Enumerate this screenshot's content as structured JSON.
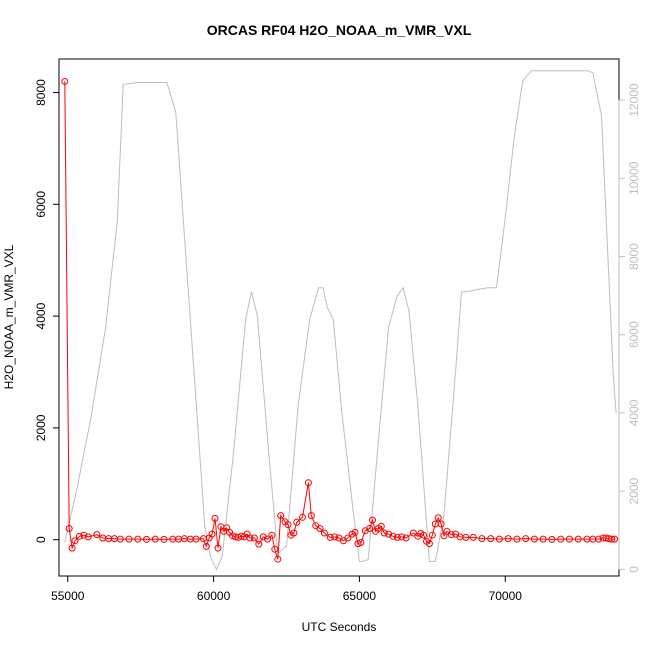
{
  "chart_data": {
    "type": "line",
    "title": "ORCAS RF04 H2O_NOAA_m_VMR_VXL",
    "xlabel": "UTC Seconds",
    "ylabel": "H2O_NOAA_m_VMR_VXL",
    "xlim": [
      54700,
      73900
    ],
    "ylim": [
      -650,
      8600
    ],
    "y2lim": [
      -170,
      13050
    ],
    "x_ticks": [
      55000,
      60000,
      65000,
      70000
    ],
    "y_ticks": [
      0,
      2000,
      4000,
      6000,
      8000
    ],
    "y2_ticks": [
      0,
      2000,
      4000,
      6000,
      8000,
      10000,
      12000
    ],
    "grid": false,
    "colors": {
      "primary": "#ff0000",
      "secondary": "#bebebe",
      "axis": "#000000"
    },
    "series": [
      {
        "axis": "left",
        "style": "line+points",
        "color": "#ff0000",
        "x": [
          54900,
          55050,
          55150,
          55250,
          55400,
          55550,
          55700,
          56000,
          56200,
          56400,
          56600,
          56800,
          57100,
          57400,
          57700,
          58000,
          58300,
          58600,
          58800,
          59000,
          59200,
          59400,
          59650,
          59750,
          59850,
          59950,
          60050,
          60150,
          60250,
          60350,
          60450,
          60550,
          60650,
          60750,
          60850,
          60950,
          61050,
          61150,
          61250,
          61400,
          61550,
          61700,
          61850,
          62000,
          62100,
          62200,
          62300,
          62450,
          62550,
          62650,
          62750,
          62850,
          63050,
          63250,
          63350,
          63500,
          63650,
          63800,
          64000,
          64150,
          64300,
          64450,
          64600,
          64750,
          64850,
          64950,
          65050,
          65200,
          65350,
          65450,
          65550,
          65650,
          65750,
          65850,
          66000,
          66150,
          66300,
          66450,
          66600,
          66850,
          67000,
          67100,
          67200,
          67300,
          67400,
          67500,
          67600,
          67700,
          67800,
          67900,
          68000,
          68150,
          68300,
          68450,
          68650,
          68900,
          69200,
          69500,
          69800,
          70100,
          70400,
          70700,
          71000,
          71300,
          71600,
          71900,
          72200,
          72500,
          72800,
          73000,
          73200,
          73350,
          73450,
          73550,
          73650,
          73750
        ],
        "y": [
          8200,
          200,
          -150,
          -20,
          60,
          80,
          50,
          90,
          30,
          20,
          20,
          10,
          10,
          10,
          5,
          10,
          5,
          10,
          10,
          20,
          10,
          10,
          20,
          -120,
          30,
          100,
          380,
          -150,
          230,
          150,
          210,
          130,
          70,
          50,
          40,
          60,
          50,
          100,
          30,
          30,
          -80,
          50,
          10,
          80,
          -170,
          -350,
          430,
          320,
          270,
          80,
          120,
          310,
          400,
          1020,
          430,
          250,
          200,
          120,
          40,
          50,
          30,
          -20,
          30,
          100,
          130,
          -70,
          -50,
          160,
          200,
          350,
          150,
          200,
          240,
          120,
          100,
          60,
          40,
          50,
          30,
          120,
          60,
          110,
          80,
          -30,
          -70,
          80,
          280,
          390,
          280,
          70,
          150,
          90,
          100,
          50,
          40,
          40,
          20,
          20,
          10,
          20,
          10,
          20,
          10,
          10,
          5,
          10,
          10,
          10,
          10,
          10,
          10,
          30,
          30,
          20,
          10,
          10
        ]
      },
      {
        "axis": "right",
        "style": "line",
        "color": "#bebebe",
        "x": [
          54900,
          55300,
          55800,
          56300,
          56700,
          56900,
          57400,
          58400,
          58700,
          59200,
          59700,
          59900,
          60100,
          60300,
          60700,
          61100,
          61300,
          61500,
          61900,
          62200,
          62500,
          62900,
          63300,
          63600,
          63750,
          63900,
          64100,
          64400,
          64800,
          65000,
          65100,
          65300,
          65700,
          66000,
          66300,
          66500,
          66700,
          67000,
          67400,
          67600,
          67900,
          68300,
          68500,
          68700,
          69000,
          69400,
          69700,
          70000,
          70300,
          70600,
          70900,
          72800,
          73000,
          73300,
          73700,
          73800
        ],
        "y": [
          700,
          2000,
          3900,
          6200,
          8900,
          12400,
          12450,
          12450,
          11700,
          6400,
          1100,
          300,
          0,
          350,
          3100,
          6400,
          7100,
          6500,
          2900,
          400,
          600,
          4200,
          6400,
          7200,
          7200,
          6700,
          6400,
          4000,
          1400,
          200,
          200,
          250,
          3700,
          6200,
          7000,
          7200,
          6600,
          4200,
          200,
          200,
          1400,
          5100,
          7100,
          7100,
          7150,
          7200,
          7200,
          9000,
          11000,
          12500,
          12750,
          12750,
          12700,
          11600,
          5000,
          4000
        ]
      }
    ]
  }
}
